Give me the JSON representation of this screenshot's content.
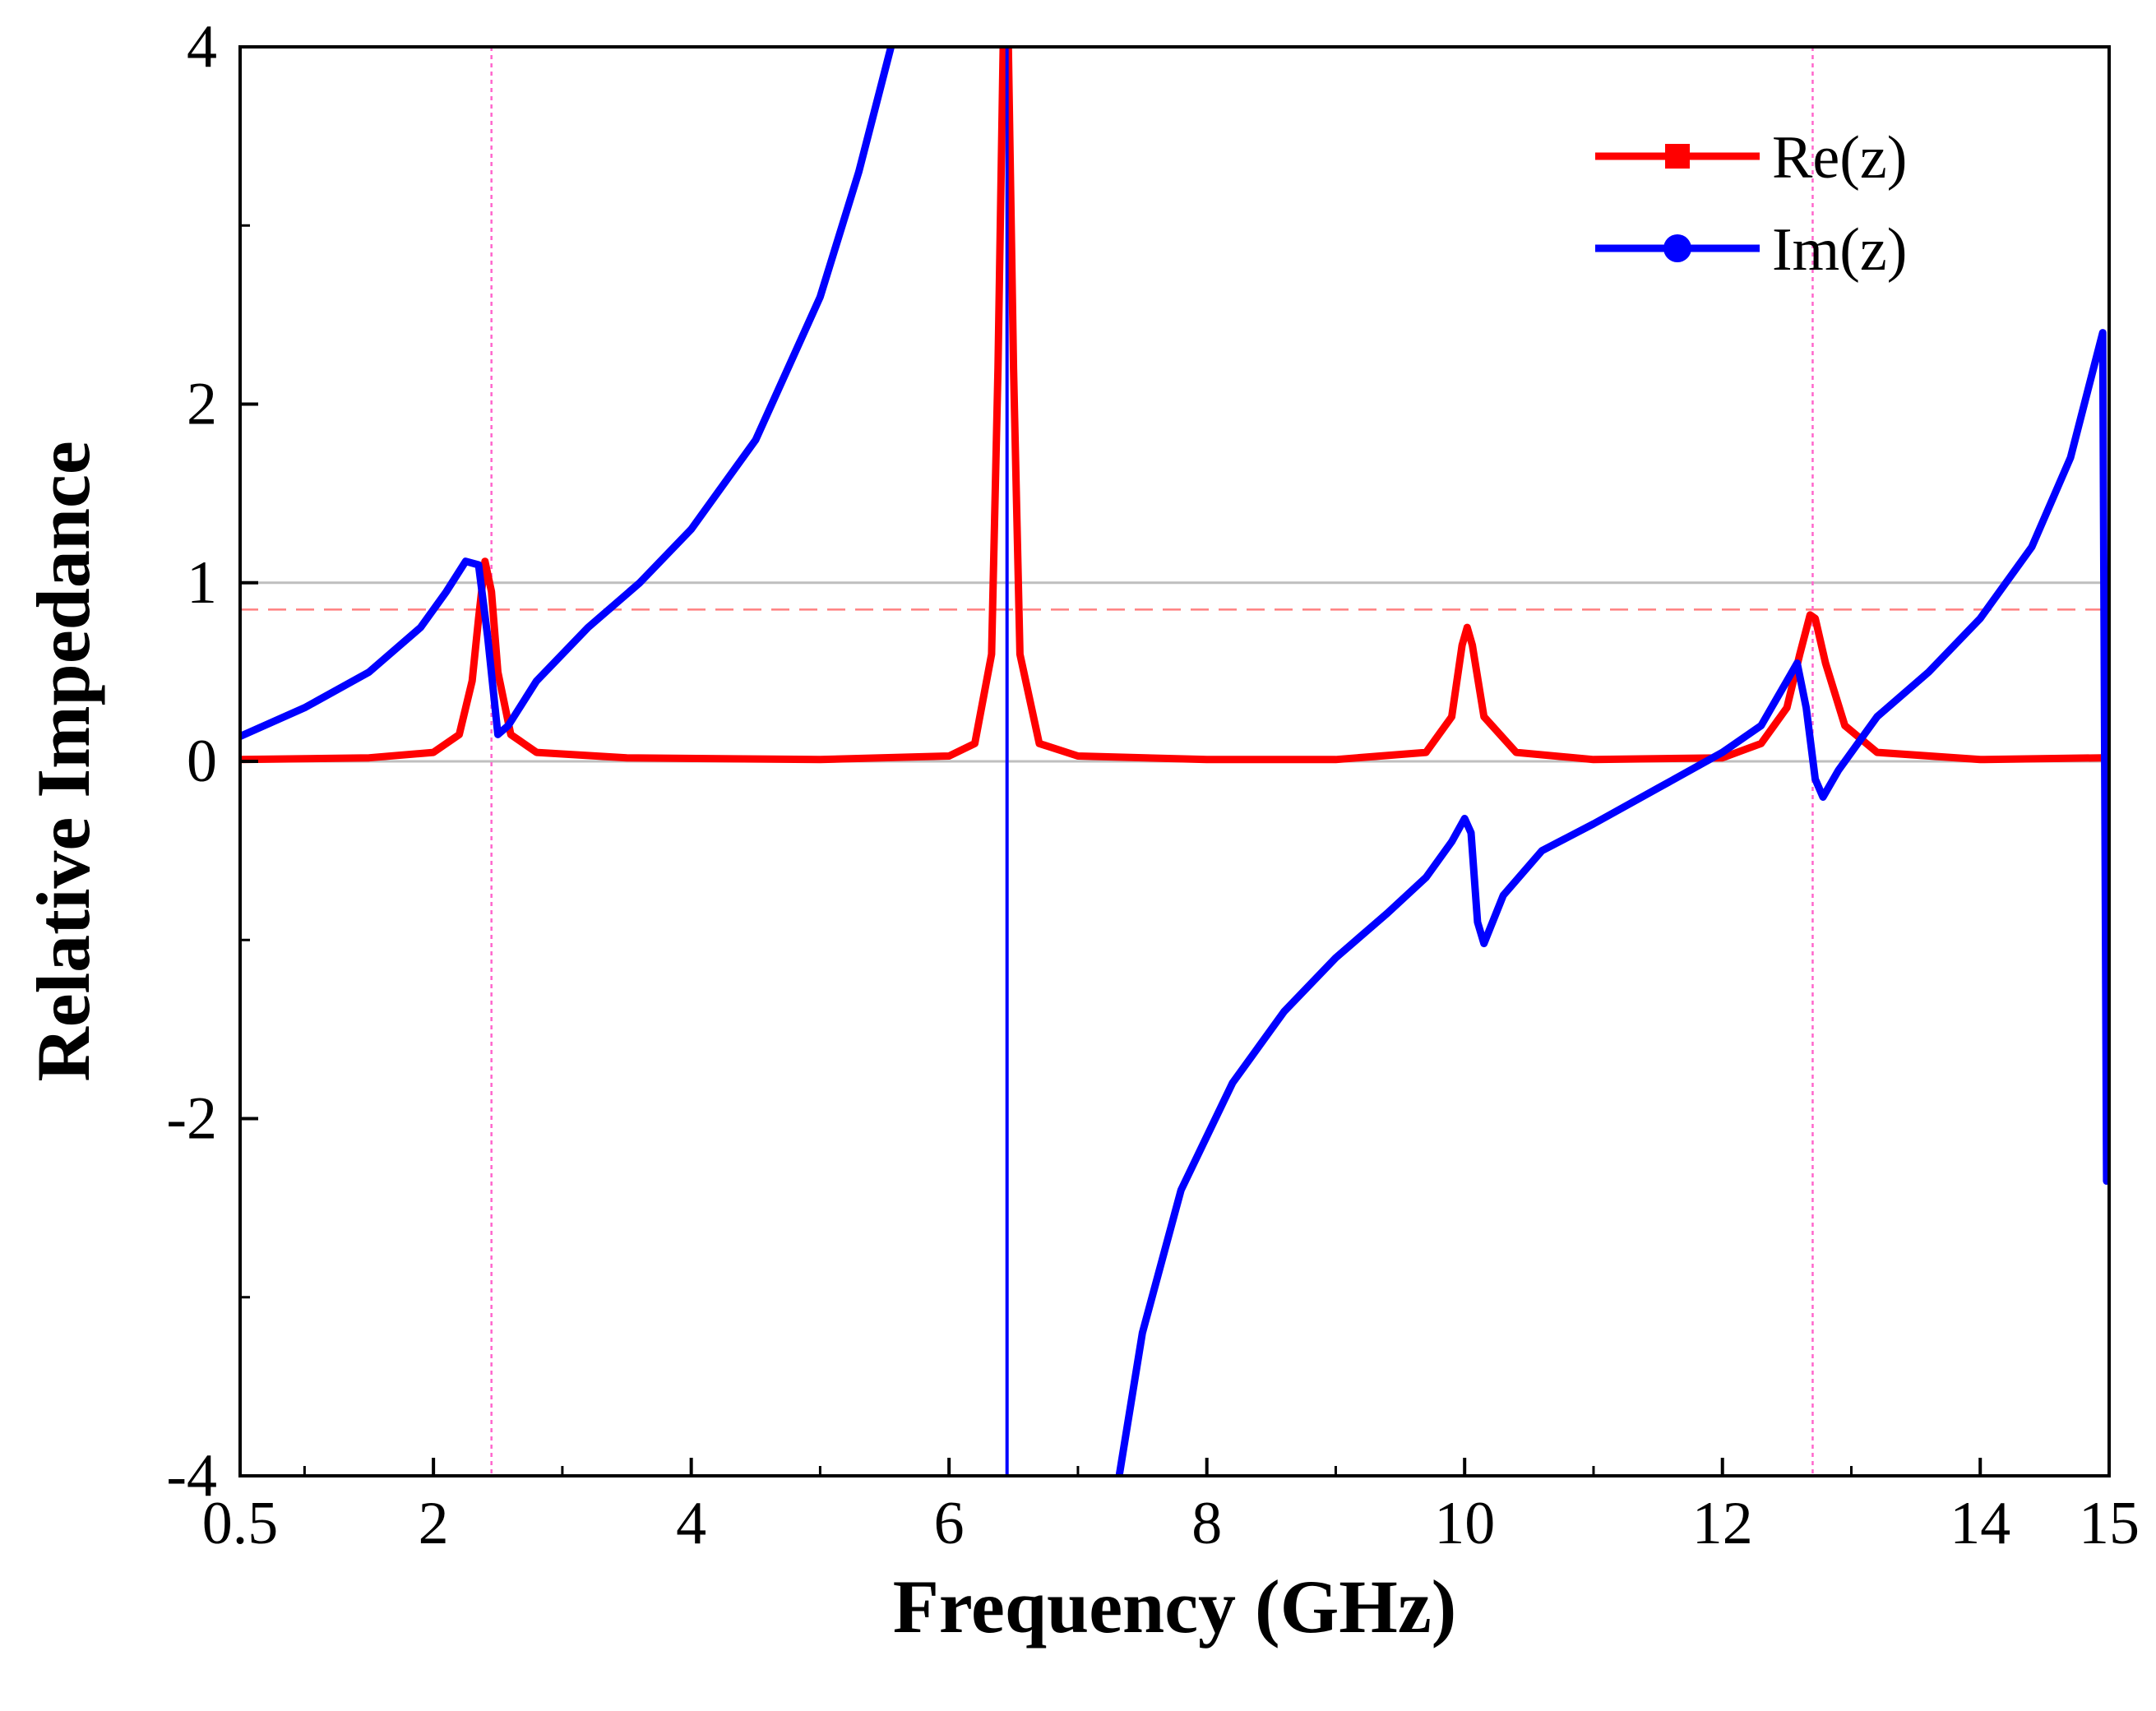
{
  "chart_data": {
    "type": "line",
    "title": "",
    "xlabel": "Frequency (GHz)",
    "ylabel": "Relative Impedance",
    "xlim": [
      0.5,
      15
    ],
    "ylim": [
      -4,
      4
    ],
    "x_ticks": [
      0.5,
      2,
      4,
      6,
      8,
      10,
      12,
      14,
      15
    ],
    "x_tick_labels": [
      "0.5",
      "2",
      "4",
      "6",
      "8",
      "10",
      "12",
      "14",
      "15"
    ],
    "y_ticks": [
      -4,
      -2,
      0,
      1,
      2,
      4
    ],
    "y_tick_labels": [
      "-4",
      "-2",
      "0",
      "1",
      "2",
      "4"
    ],
    "grid": false,
    "legend_position": "top-right",
    "reference_lines": [
      {
        "name": "unity",
        "axis": "y",
        "value": 1,
        "style": "solid",
        "color": "#bfbfbf"
      },
      {
        "name": "zero",
        "axis": "y",
        "value": 0,
        "style": "solid",
        "color": "#bfbfbf"
      },
      {
        "name": "re-level",
        "axis": "y",
        "value": 0.85,
        "style": "dashed",
        "color": "#ff8080"
      },
      {
        "name": "marker-1",
        "axis": "x",
        "value": 2.45,
        "style": "dotted",
        "color": "#ff66cc"
      },
      {
        "name": "marker-2",
        "axis": "x",
        "value": 12.7,
        "style": "dotted",
        "color": "#ff66cc"
      }
    ],
    "series": [
      {
        "name": "Re(z)",
        "color": "#ff0000",
        "marker": "square",
        "points": [
          [
            0.5,
            0.01
          ],
          [
            1.5,
            0.02
          ],
          [
            2.0,
            0.05
          ],
          [
            2.2,
            0.15
          ],
          [
            2.3,
            0.45
          ],
          [
            2.35,
            0.8
          ],
          [
            2.4,
            1.12
          ],
          [
            2.45,
            0.95
          ],
          [
            2.5,
            0.5
          ],
          [
            2.6,
            0.15
          ],
          [
            2.8,
            0.05
          ],
          [
            3.5,
            0.02
          ],
          [
            5.0,
            0.01
          ],
          [
            6.0,
            0.03
          ],
          [
            6.2,
            0.1
          ],
          [
            6.33,
            0.6
          ],
          [
            6.38,
            2.2
          ],
          [
            6.42,
            4.0
          ],
          [
            6.46,
            4.0
          ],
          [
            6.5,
            2.2
          ],
          [
            6.55,
            0.6
          ],
          [
            6.7,
            0.1
          ],
          [
            7.0,
            0.03
          ],
          [
            8.0,
            0.01
          ],
          [
            9.0,
            0.01
          ],
          [
            9.7,
            0.05
          ],
          [
            9.9,
            0.25
          ],
          [
            9.98,
            0.65
          ],
          [
            10.02,
            0.75
          ],
          [
            10.06,
            0.65
          ],
          [
            10.15,
            0.25
          ],
          [
            10.4,
            0.05
          ],
          [
            11.0,
            0.01
          ],
          [
            12.0,
            0.02
          ],
          [
            12.3,
            0.1
          ],
          [
            12.5,
            0.3
          ],
          [
            12.6,
            0.6
          ],
          [
            12.68,
            0.82
          ],
          [
            12.72,
            0.8
          ],
          [
            12.8,
            0.55
          ],
          [
            12.95,
            0.2
          ],
          [
            13.2,
            0.05
          ],
          [
            14.0,
            0.01
          ],
          [
            14.95,
            0.02
          ]
        ]
      },
      {
        "name": "Im(z)",
        "color": "#0000ff",
        "marker": "circle",
        "points": [
          [
            0.5,
            0.14
          ],
          [
            1.0,
            0.3
          ],
          [
            1.5,
            0.5
          ],
          [
            1.9,
            0.75
          ],
          [
            2.1,
            0.95
          ],
          [
            2.25,
            1.12
          ],
          [
            2.35,
            1.1
          ],
          [
            2.42,
            0.7
          ],
          [
            2.5,
            0.15
          ],
          [
            2.58,
            0.2
          ],
          [
            2.8,
            0.45
          ],
          [
            3.2,
            0.75
          ],
          [
            3.6,
            1.0
          ],
          [
            4.0,
            1.3
          ],
          [
            4.5,
            1.8
          ],
          [
            5.0,
            2.6
          ],
          [
            5.3,
            3.3
          ],
          [
            5.55,
            4.0
          ]
        ]
      },
      {
        "name": "Im(z)",
        "color": "#0000ff",
        "marker": "circle",
        "points": [
          [
            7.32,
            -4.0
          ],
          [
            7.5,
            -3.2
          ],
          [
            7.8,
            -2.4
          ],
          [
            8.2,
            -1.8
          ],
          [
            8.6,
            -1.4
          ],
          [
            9.0,
            -1.1
          ],
          [
            9.4,
            -0.85
          ],
          [
            9.7,
            -0.65
          ],
          [
            9.9,
            -0.45
          ],
          [
            10.0,
            -0.32
          ],
          [
            10.05,
            -0.4
          ],
          [
            10.1,
            -0.9
          ],
          [
            10.15,
            -1.02
          ],
          [
            10.3,
            -0.75
          ],
          [
            10.6,
            -0.5
          ],
          [
            11.0,
            -0.35
          ],
          [
            11.5,
            -0.15
          ],
          [
            12.0,
            0.05
          ],
          [
            12.3,
            0.2
          ],
          [
            12.5,
            0.45
          ],
          [
            12.58,
            0.55
          ],
          [
            12.65,
            0.3
          ],
          [
            12.72,
            -0.1
          ],
          [
            12.78,
            -0.2
          ],
          [
            12.9,
            -0.05
          ],
          [
            13.2,
            0.25
          ],
          [
            13.6,
            0.5
          ],
          [
            14.0,
            0.8
          ],
          [
            14.4,
            1.2
          ],
          [
            14.7,
            1.7
          ],
          [
            14.95,
            2.4
          ],
          [
            14.98,
            -2.35
          ]
        ]
      },
      {
        "name": "Im(z) pole line",
        "color": "#0000ff",
        "marker": "none",
        "points": [
          [
            6.45,
            4.0
          ],
          [
            6.45,
            -4.0
          ]
        ]
      }
    ]
  },
  "legend": [
    {
      "label": "Re(z)",
      "color": "#ff0000",
      "marker": "square"
    },
    {
      "label": "Im(z)",
      "color": "#0000ff",
      "marker": "circle"
    }
  ]
}
